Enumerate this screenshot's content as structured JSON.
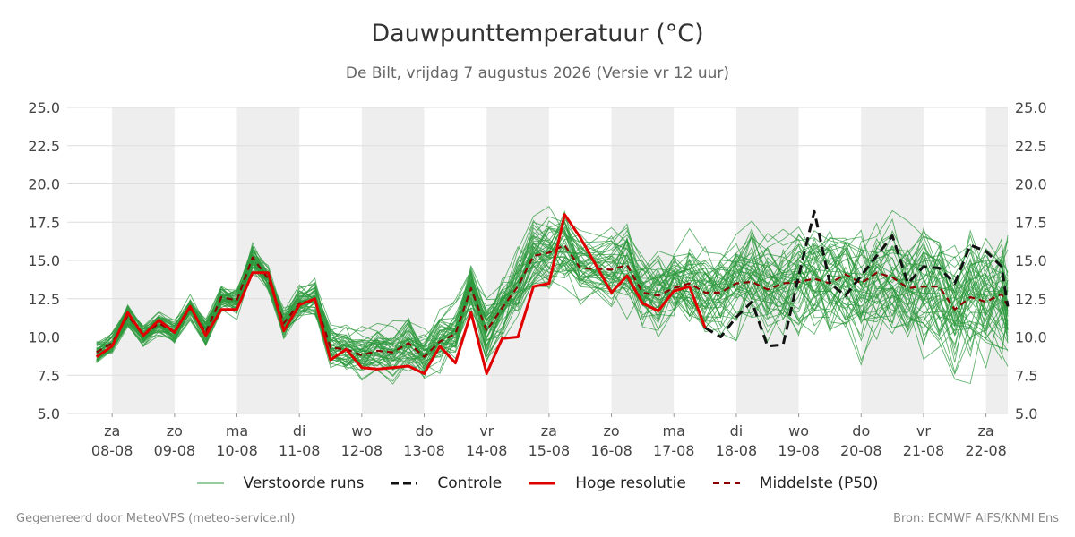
{
  "header": {
    "title": "Dauwpunttemperatuur (°C)",
    "subtitle": "De Bilt, vrijdag  7 augustus 2026 (Versie vr 12 uur)"
  },
  "footer": {
    "left": "Gegenereerd door MeteoVPS (meteo-service.nl)",
    "right": "Bron: ECMWF AIFS/KNMI Ens"
  },
  "colors": {
    "ensemble": "#2e9a3e",
    "control": "#111111",
    "high_res": "#e00000",
    "median": "#8b0000",
    "shade": "#eeeeee",
    "grid": "#dddddd"
  },
  "chart_data": {
    "type": "line",
    "title": "Dauwpunttemperatuur (°C)",
    "ylim": [
      5.0,
      25.0
    ],
    "yticks": [
      "5.0",
      "7.5",
      "10.0",
      "12.5",
      "15.0",
      "17.5",
      "20.0",
      "22.5",
      "25.0"
    ],
    "x_unit": "days since start of axis (08-08 00h at x=0.5 label)",
    "xlim": [
      -0.72,
      14.35
    ],
    "xtick_days": [
      "za",
      "zo",
      "ma",
      "di",
      "wo",
      "do",
      "vr",
      "za",
      "zo",
      "ma",
      "di",
      "wo",
      "do",
      "vr",
      "za"
    ],
    "xtick_dates": [
      "08-08",
      "09-08",
      "10-08",
      "11-08",
      "12-08",
      "13-08",
      "14-08",
      "15-08",
      "16-08",
      "17-08",
      "18-08",
      "19-08",
      "20-08",
      "21-08",
      "22-08"
    ],
    "legend": [
      {
        "label": "Verstoorde runs",
        "style": "thin-green"
      },
      {
        "label": "Controle",
        "style": "dashed-black"
      },
      {
        "label": "Hoge resolutie",
        "style": "solid-red"
      },
      {
        "label": "Middelste (P50)",
        "style": "dashed-darkred"
      }
    ],
    "grid": true,
    "series": [
      {
        "name": "Hoge resolutie",
        "x": [
          -0.25,
          0.0,
          0.25,
          0.5,
          0.75,
          1.0,
          1.25,
          1.5,
          1.75,
          2.0,
          2.25,
          2.5,
          2.75,
          3.0,
          3.25,
          3.5,
          3.75,
          4.0,
          4.25,
          4.5,
          4.75,
          5.0,
          5.25,
          5.5,
          5.75,
          6.0,
          6.25,
          6.5,
          6.75,
          7.0,
          7.25,
          7.5,
          8.0,
          8.25,
          8.5,
          8.75,
          9.0,
          9.25,
          9.5
        ],
        "y": [
          8.7,
          9.4,
          11.6,
          10.1,
          11.1,
          10.3,
          12.0,
          10.1,
          11.8,
          11.8,
          14.2,
          14.2,
          10.4,
          12.1,
          12.5,
          8.5,
          9.2,
          8.0,
          7.9,
          8.0,
          8.1,
          7.6,
          9.4,
          8.3,
          11.6,
          7.6,
          9.9,
          10.0,
          13.3,
          13.5,
          18.0,
          16.5,
          12.9,
          14.0,
          12.2,
          11.7,
          13.0,
          13.3,
          10.6
        ]
      },
      {
        "name": "Middelste (P50)",
        "x": [
          -0.25,
          0.0,
          0.25,
          0.5,
          0.75,
          1.0,
          1.25,
          1.5,
          1.75,
          2.0,
          2.25,
          2.5,
          2.75,
          3.0,
          3.25,
          3.5,
          3.75,
          4.0,
          4.25,
          4.5,
          4.75,
          5.0,
          5.25,
          5.5,
          5.75,
          6.0,
          6.25,
          6.5,
          6.75,
          7.0,
          7.25,
          7.5,
          8.0,
          8.25,
          8.5,
          8.75,
          9.0,
          9.25,
          9.5,
          9.75,
          10.0,
          10.25,
          10.5,
          10.75,
          11.0,
          11.25,
          11.5,
          11.75,
          12.0,
          12.25,
          12.5,
          12.75,
          13.0,
          13.25,
          13.5,
          13.75,
          14.0,
          14.25,
          14.35
        ],
        "y": [
          9.0,
          9.6,
          11.4,
          10.1,
          10.9,
          10.3,
          11.9,
          10.3,
          12.6,
          12.4,
          15.2,
          13.8,
          10.9,
          12.2,
          12.4,
          9.3,
          9.2,
          8.8,
          9.1,
          9.0,
          9.6,
          8.7,
          9.7,
          10.2,
          13.2,
          10.4,
          11.9,
          13.3,
          15.3,
          15.5,
          16.0,
          14.5,
          14.4,
          14.7,
          12.9,
          12.7,
          13.2,
          13.5,
          12.9,
          12.9,
          13.5,
          13.6,
          13.1,
          13.5,
          13.6,
          13.8,
          13.5,
          14.1,
          13.5,
          14.2,
          13.9,
          13.2,
          13.3,
          13.3,
          11.8,
          12.6,
          12.3,
          12.8,
          12.0
        ]
      },
      {
        "name": "Controle",
        "x": [
          9.5,
          9.75,
          10.0,
          10.25,
          10.5,
          10.75,
          11.0,
          11.25,
          11.5,
          11.75,
          12.0,
          12.25,
          12.5,
          12.75,
          13.0,
          13.25,
          13.5,
          13.75,
          14.0,
          14.25,
          14.35
        ],
        "y": [
          10.6,
          10.0,
          11.3,
          12.3,
          9.4,
          9.5,
          14.0,
          18.2,
          13.5,
          12.7,
          14.0,
          15.3,
          16.6,
          13.5,
          14.6,
          14.5,
          13.5,
          16.0,
          15.6,
          14.6,
          12.0
        ]
      }
    ]
  }
}
